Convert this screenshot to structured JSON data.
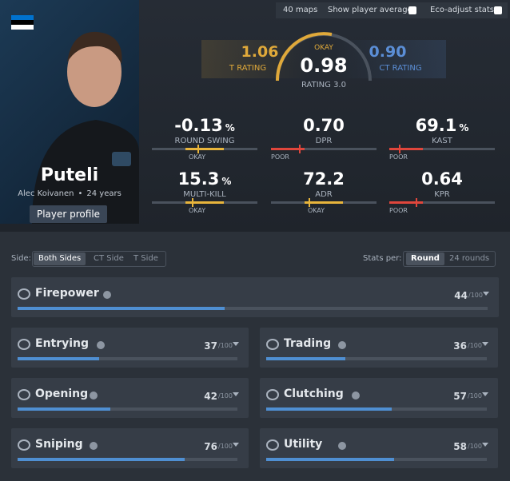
{
  "top_bar": {
    "maps": "40 maps",
    "show_average": "Show player average",
    "eco_adjust": "Eco-adjust stats"
  },
  "player": {
    "name": "Puteli",
    "real_name": "Alec Koivanen",
    "age": "24 years",
    "profile_button": "Player profile"
  },
  "rating": {
    "t_value": "1.06",
    "t_label": "T RATING",
    "verdict": "OKAY",
    "value": "0.98",
    "label": "RATING 3.0",
    "ct_value": "0.90",
    "ct_label": "CT RATING"
  },
  "stats": [
    {
      "value": "-0.13",
      "unit": "%",
      "label": "ROUND SWING",
      "verdict": "OKAY"
    },
    {
      "value": "0.70",
      "label": "DPR",
      "verdict": "POOR"
    },
    {
      "value": "69.1",
      "unit": "%",
      "label": "KAST",
      "verdict": "POOR"
    },
    {
      "value": "15.3",
      "unit": "%",
      "label": "MULTI-KILL",
      "verdict": "OKAY"
    },
    {
      "value": "72.2",
      "label": "ADR",
      "verdict": "OKAY"
    },
    {
      "value": "0.64",
      "label": "KPR",
      "verdict": "POOR"
    }
  ],
  "filters": {
    "side_label": "Side:",
    "sides": [
      "Both Sides",
      "CT Side",
      "T Side"
    ],
    "stats_per_label": "Stats per:",
    "per": [
      "Round",
      "24 rounds"
    ]
  },
  "score_max": 100,
  "categories": [
    {
      "name": "Firepower",
      "score": 44,
      "max_label": "/100"
    },
    {
      "name": "Entrying",
      "score": 37,
      "max_label": "/100"
    },
    {
      "name": "Trading",
      "score": 36,
      "max_label": "/100"
    },
    {
      "name": "Opening",
      "score": 42,
      "max_label": "/100"
    },
    {
      "name": "Clutching",
      "score": 57,
      "max_label": "/100"
    },
    {
      "name": "Sniping",
      "score": 76,
      "max_label": "/100"
    },
    {
      "name": "Utility",
      "score": 58,
      "max_label": "/100"
    }
  ]
}
